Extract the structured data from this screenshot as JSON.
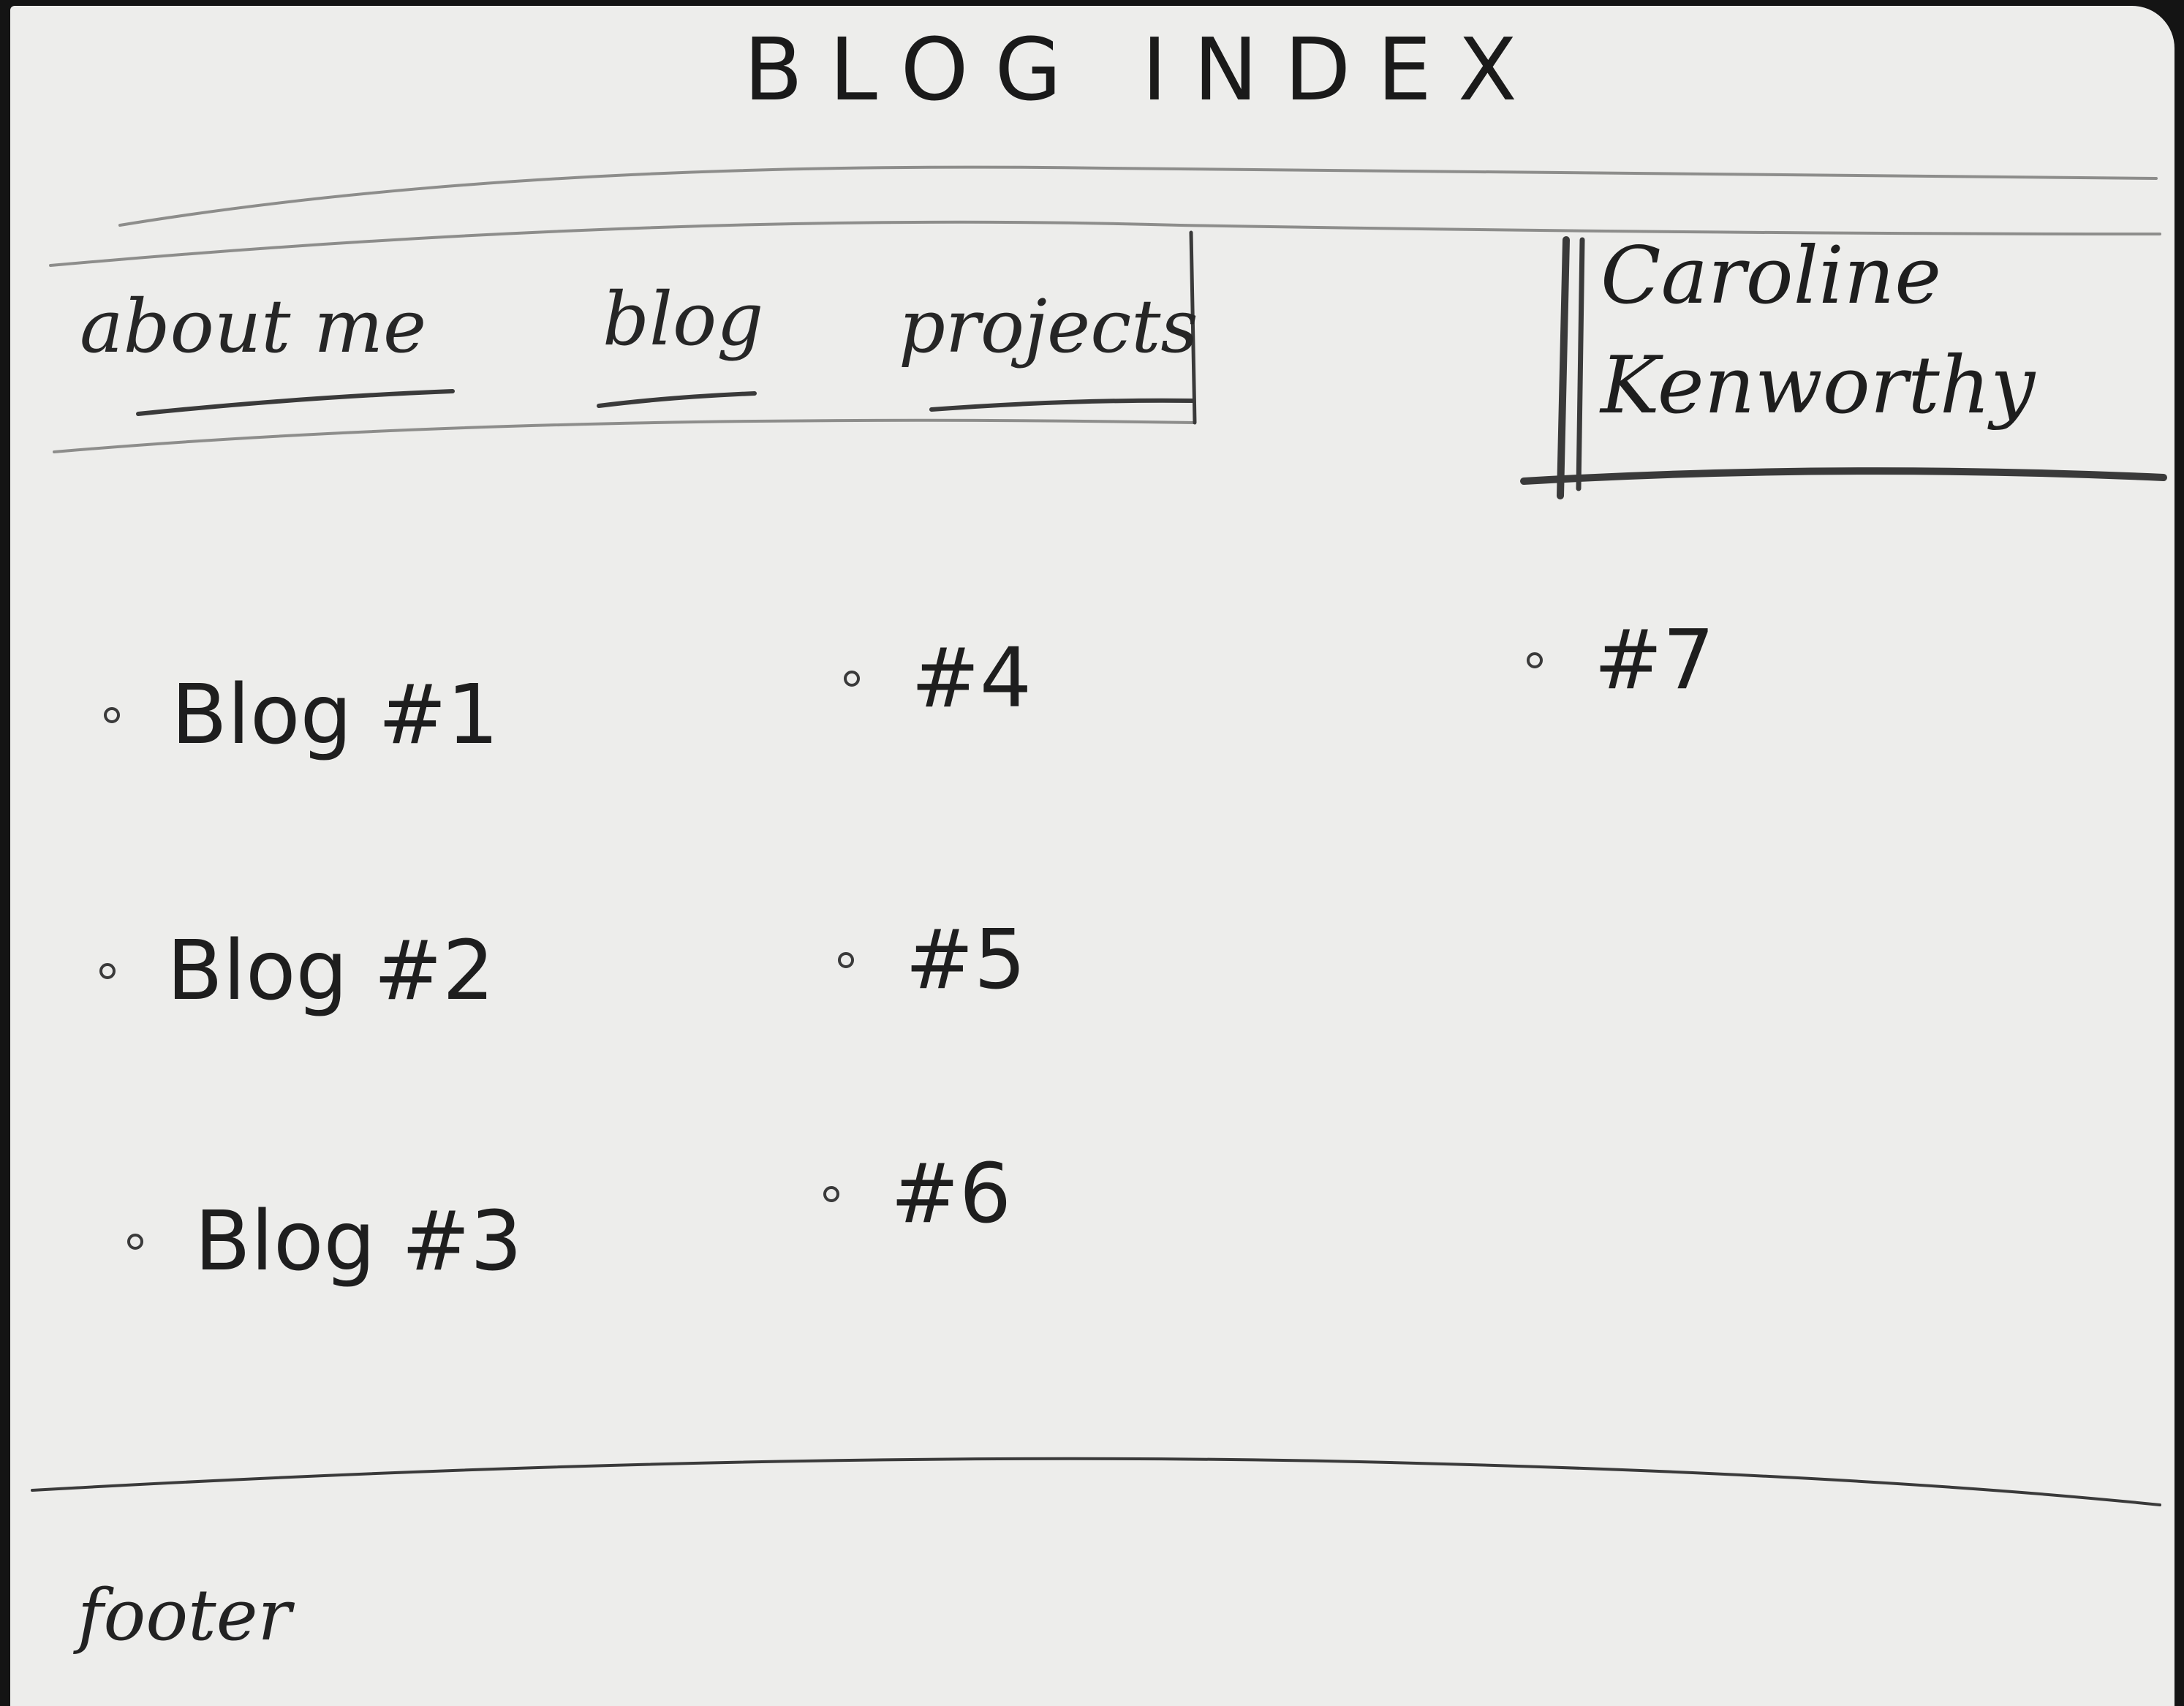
{
  "page": {
    "title": "BLOG INDEX"
  },
  "nav": {
    "items": [
      {
        "label": "about me"
      },
      {
        "label": "blog"
      },
      {
        "label": "projects"
      }
    ]
  },
  "brand": {
    "first_name": "Caroline",
    "last_name": "Kenworthy"
  },
  "posts": [
    {
      "label": "Blog #1"
    },
    {
      "label": "Blog #2"
    },
    {
      "label": "Blog #3"
    },
    {
      "label": "#4"
    },
    {
      "label": "#5"
    },
    {
      "label": "#6"
    },
    {
      "label": "#7"
    }
  ],
  "footer": {
    "label": "footer"
  },
  "colors": {
    "paper": "#ededeb",
    "pencil": "#1e1e1e",
    "background": "#141414"
  }
}
